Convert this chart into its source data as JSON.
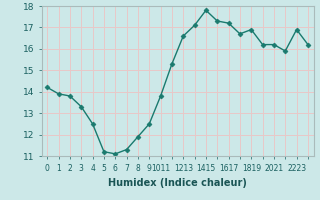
{
  "x": [
    0,
    1,
    2,
    3,
    4,
    5,
    6,
    7,
    8,
    9,
    10,
    11,
    12,
    13,
    14,
    15,
    16,
    17,
    18,
    19,
    20,
    21,
    22,
    23
  ],
  "y": [
    14.2,
    13.9,
    13.8,
    13.3,
    12.5,
    11.2,
    11.1,
    11.3,
    11.9,
    12.5,
    13.8,
    15.3,
    16.6,
    17.1,
    17.8,
    17.3,
    17.2,
    16.7,
    16.9,
    16.2,
    16.2,
    15.9,
    16.9,
    16.2
  ],
  "xlabel": "Humidex (Indice chaleur)",
  "xlim": [
    -0.5,
    23.5
  ],
  "ylim": [
    11,
    18
  ],
  "yticks": [
    11,
    12,
    13,
    14,
    15,
    16,
    17,
    18
  ],
  "line_color": "#1a7a6e",
  "marker": "D",
  "marker_size": 2.5,
  "bg_color": "#cce8e8",
  "grid_color": "#e8c8c8",
  "tick_color": "#1a6060",
  "label_color": "#1a5555"
}
